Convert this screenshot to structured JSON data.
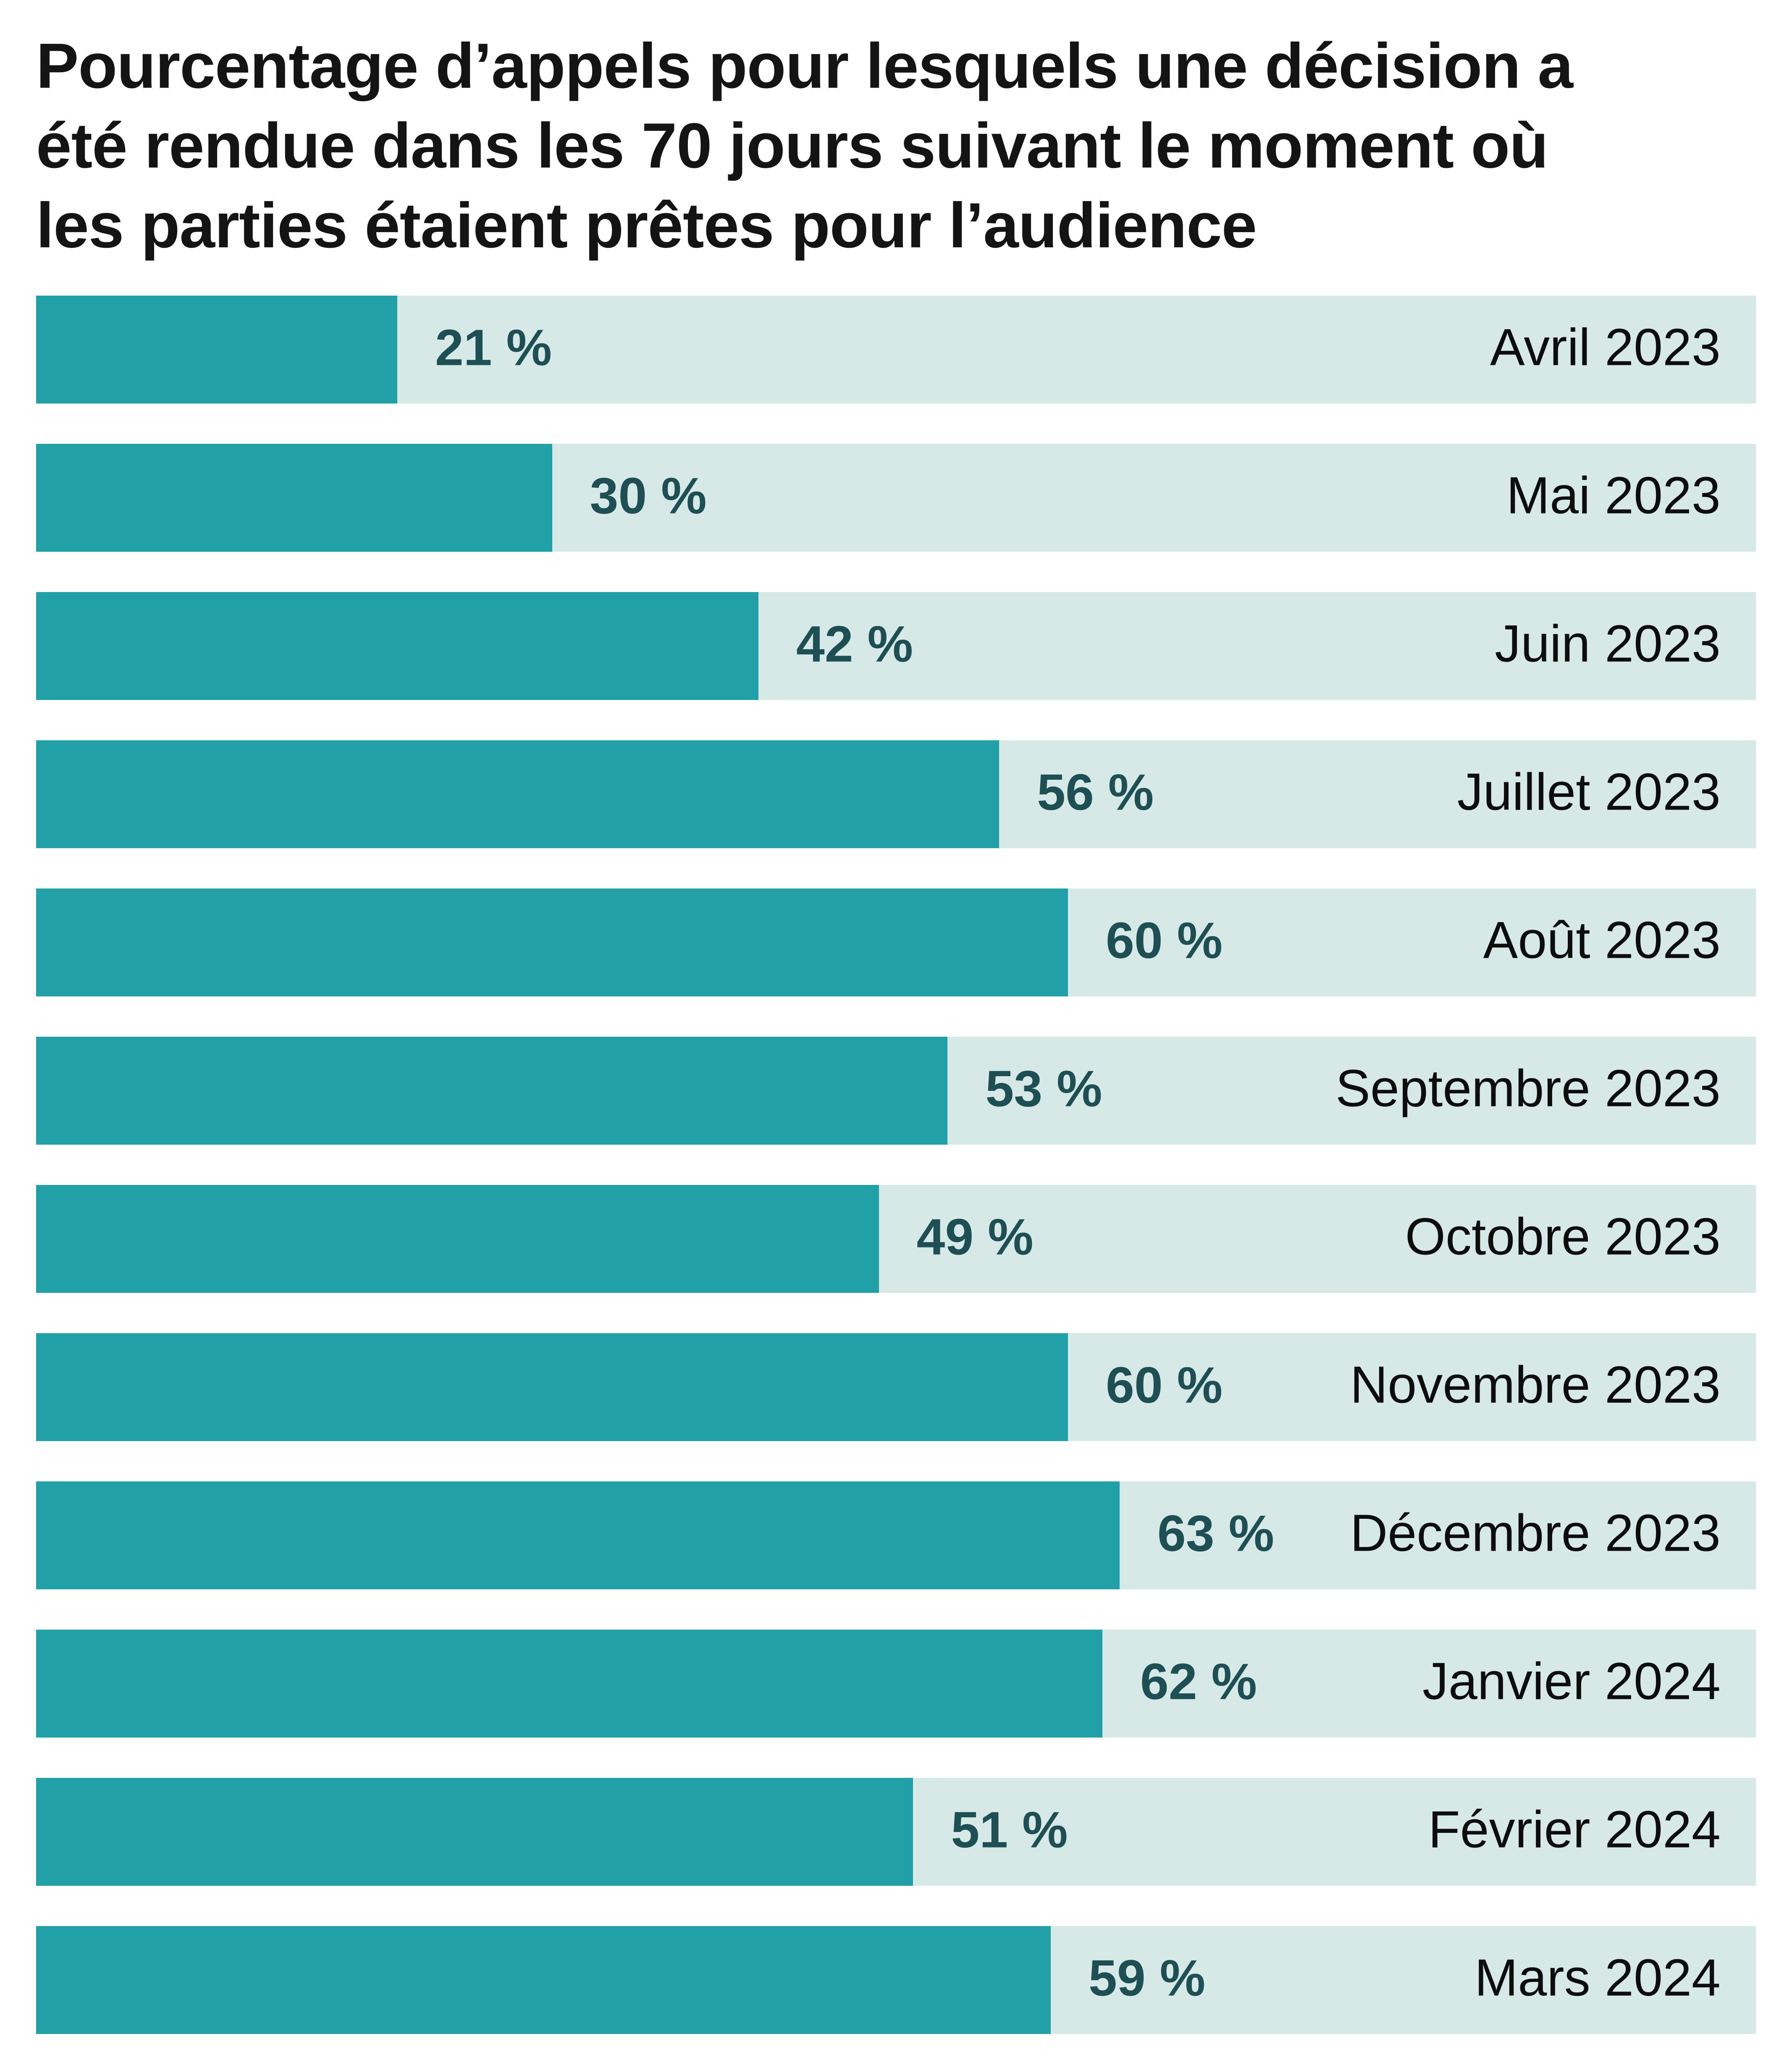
{
  "title": "Pourcentage d’appels pour lesquels une décision a été rendue dans les 70 jours suivant le moment où les parties étaient prêtes pour l’audience",
  "chart_data": {
    "type": "bar",
    "orientation": "horizontal",
    "title": "Pourcentage d’appels pour lesquels une décision a été rendue dans les 70 jours suivant le moment où les parties étaient prêtes pour l’audience",
    "categories": [
      "Avril 2023",
      "Mai 2023",
      "Juin 2023",
      "Juillet 2023",
      "Août 2023",
      "Septembre 2023",
      "Octobre 2023",
      "Novembre 2023",
      "Décembre 2023",
      "Janvier 2024",
      "Février 2024",
      "Mars 2024"
    ],
    "values": [
      21,
      30,
      42,
      56,
      60,
      53,
      49,
      60,
      63,
      62,
      51,
      59
    ],
    "value_labels": [
      "21 %",
      "30 %",
      "42 %",
      "56 %",
      "60 %",
      "53 %",
      "49 %",
      "60 %",
      "63 %",
      "62 %",
      "51 %",
      "59 %"
    ],
    "unit": "%",
    "xlim": [
      0,
      100
    ],
    "grid": false,
    "legend": "none",
    "colors": {
      "bar_fill": "#21a1a7",
      "bar_track": "#d6e9e7",
      "value_text": "#1d4f55",
      "category_text": "#0d0d0d",
      "title_text": "#141414",
      "background": "#ffffff"
    }
  }
}
